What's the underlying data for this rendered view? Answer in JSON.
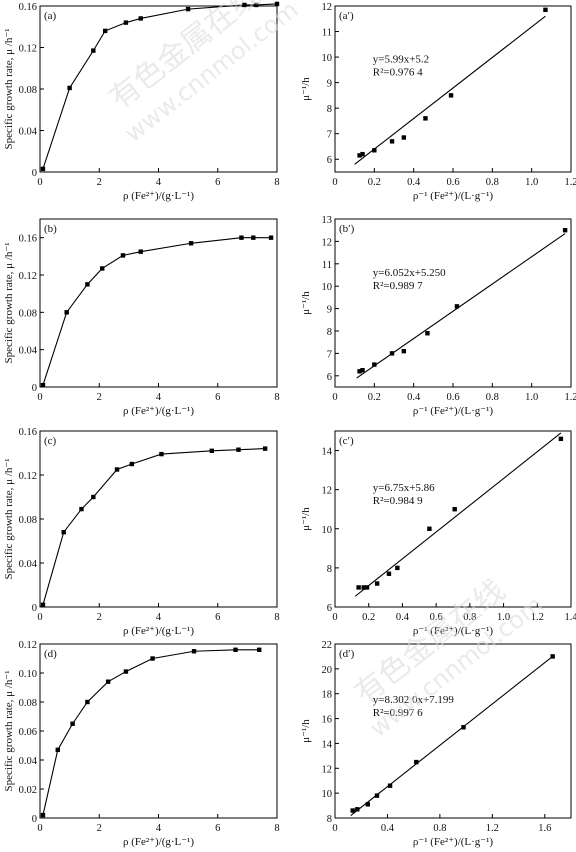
{
  "ylabel_left": "Specific growth rate, μ /h⁻¹",
  "xlabel_left": "ρ (Fe²⁺)/(g·L⁻¹)",
  "ylabel_right": "μ⁻¹/h",
  "xlabel_right": "ρ⁻¹ (Fe²⁺)/(L·g⁻¹)",
  "watermark": {
    "cn": "有色金属在线",
    "url": "www.cnnmol.com"
  },
  "chart_data": [
    {
      "type": "line",
      "panel": "(a)",
      "xlim": [
        0,
        8
      ],
      "ylim": [
        0,
        0.16
      ],
      "xticks": [
        0,
        2,
        4,
        6,
        8
      ],
      "yticks": [
        0,
        0.04,
        0.08,
        0.12,
        0.16
      ],
      "x": [
        0.1,
        1.0,
        1.8,
        2.2,
        2.9,
        3.4,
        5.0,
        6.9,
        7.3,
        8.0
      ],
      "y": [
        0.003,
        0.081,
        0.117,
        0.136,
        0.144,
        0.148,
        0.157,
        0.161,
        0.161,
        0.162
      ]
    },
    {
      "type": "scatter",
      "panel": "(a′)",
      "xlim": [
        0,
        1.2
      ],
      "ylim": [
        5.5,
        12
      ],
      "xticks": [
        0,
        0.2,
        0.4,
        0.6,
        0.8,
        1.0,
        1.2
      ],
      "yticks": [
        6,
        7,
        8,
        9,
        10,
        11,
        12
      ],
      "x": [
        0.125,
        0.14,
        0.2,
        0.29,
        0.35,
        0.46,
        0.59,
        1.07
      ],
      "y": [
        6.15,
        6.2,
        6.35,
        6.7,
        6.85,
        7.6,
        8.5,
        11.85
      ],
      "fit": {
        "x": [
          0.1,
          1.07
        ],
        "y": [
          5.8,
          11.6
        ]
      },
      "annotation": [
        "y=5.99x+5.2",
        "R²=0.976 4"
      ]
    },
    {
      "type": "line",
      "panel": "(b)",
      "xlim": [
        0,
        8
      ],
      "ylim": [
        0,
        0.18
      ],
      "xticks": [
        0,
        2,
        4,
        6,
        8
      ],
      "yticks": [
        0,
        0.04,
        0.08,
        0.12,
        0.16
      ],
      "x": [
        0.1,
        0.9,
        1.6,
        2.1,
        2.8,
        3.4,
        5.1,
        6.8,
        7.2,
        7.8
      ],
      "y": [
        0.002,
        0.08,
        0.11,
        0.127,
        0.141,
        0.145,
        0.154,
        0.16,
        0.16,
        0.16
      ]
    },
    {
      "type": "scatter",
      "panel": "(b′)",
      "xlim": [
        0,
        1.2
      ],
      "ylim": [
        5.5,
        13
      ],
      "xticks": [
        0,
        0.2,
        0.4,
        0.6,
        0.8,
        1.0,
        1.2
      ],
      "yticks": [
        6,
        7,
        8,
        9,
        10,
        11,
        12,
        13
      ],
      "x": [
        0.125,
        0.14,
        0.2,
        0.29,
        0.35,
        0.47,
        0.62,
        1.17
      ],
      "y": [
        6.2,
        6.25,
        6.5,
        7.0,
        7.1,
        7.9,
        9.1,
        12.5
      ],
      "fit": {
        "x": [
          0.11,
          1.17
        ],
        "y": [
          5.9,
          12.35
        ]
      },
      "annotation": [
        "y=6.052x+5.250",
        "R²=0.989 7"
      ]
    },
    {
      "type": "line",
      "panel": "(c)",
      "xlim": [
        0,
        8
      ],
      "ylim": [
        0,
        0.16
      ],
      "xticks": [
        0,
        2,
        4,
        6,
        8
      ],
      "yticks": [
        0,
        0.04,
        0.08,
        0.12,
        0.16
      ],
      "x": [
        0.1,
        0.8,
        1.4,
        1.8,
        2.6,
        3.1,
        4.1,
        5.8,
        6.7,
        7.6
      ],
      "y": [
        0.002,
        0.068,
        0.089,
        0.1,
        0.125,
        0.13,
        0.139,
        0.142,
        0.143,
        0.144
      ]
    },
    {
      "type": "scatter",
      "panel": "(c′)",
      "xlim": [
        0,
        1.4
      ],
      "ylim": [
        6,
        15
      ],
      "xticks": [
        0,
        0.2,
        0.4,
        0.6,
        0.8,
        1.0,
        1.2,
        1.4
      ],
      "yticks": [
        6,
        8,
        10,
        12,
        14
      ],
      "x": [
        0.14,
        0.17,
        0.19,
        0.25,
        0.32,
        0.37,
        0.56,
        0.71,
        1.34
      ],
      "y": [
        7.0,
        7.0,
        7.0,
        7.2,
        7.7,
        8.0,
        10.0,
        11.0,
        14.6
      ],
      "fit": {
        "x": [
          0.12,
          1.34
        ],
        "y": [
          6.55,
          14.9
        ]
      },
      "annotation": [
        "y=6.75x+5.86",
        "R²=0.984 9"
      ]
    },
    {
      "type": "line",
      "panel": "(d)",
      "xlim": [
        0,
        8
      ],
      "ylim": [
        0,
        0.12
      ],
      "xticks": [
        0,
        2,
        4,
        6,
        8
      ],
      "yticks": [
        0,
        0.02,
        0.04,
        0.06,
        0.08,
        0.1,
        0.12
      ],
      "x": [
        0.1,
        0.6,
        1.1,
        1.6,
        2.3,
        2.9,
        3.8,
        5.2,
        6.6,
        7.4
      ],
      "y": [
        0.002,
        0.047,
        0.065,
        0.08,
        0.094,
        0.101,
        0.11,
        0.115,
        0.116,
        0.116
      ]
    },
    {
      "type": "scatter",
      "panel": "(d′)",
      "xlim": [
        0,
        1.8
      ],
      "ylim": [
        8,
        22
      ],
      "xticks": [
        0,
        0.4,
        0.8,
        1.2,
        1.6
      ],
      "yticks": [
        8,
        10,
        12,
        14,
        16,
        18,
        20,
        22
      ],
      "x": [
        0.135,
        0.17,
        0.25,
        0.32,
        0.42,
        0.62,
        0.98,
        1.66
      ],
      "y": [
        8.6,
        8.7,
        9.1,
        9.8,
        10.6,
        12.5,
        15.3,
        21.0
      ],
      "fit": {
        "x": [
          0.12,
          1.66
        ],
        "y": [
          8.2,
          21.0
        ]
      },
      "annotation": [
        "y=8.302 0x+7.199",
        "R²=0.997 6"
      ]
    }
  ]
}
